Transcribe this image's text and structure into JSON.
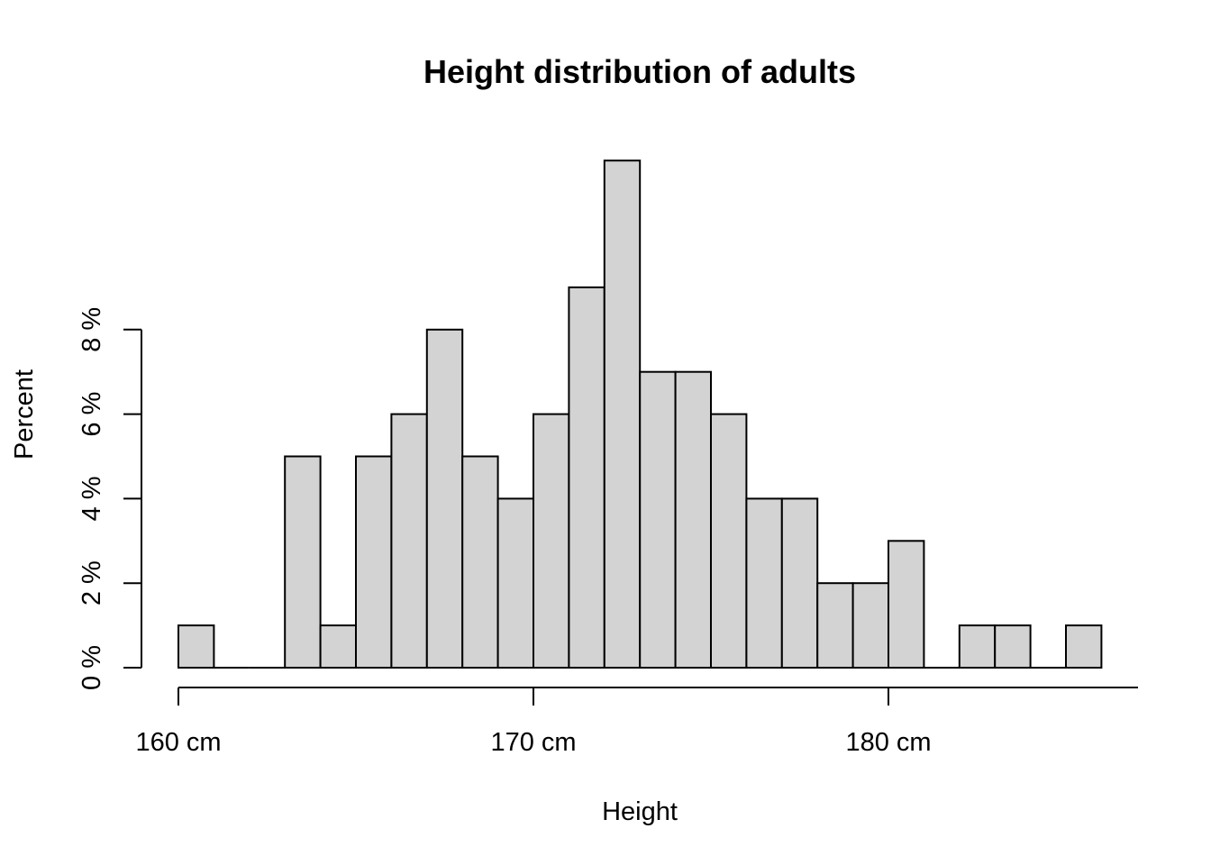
{
  "chart_data": {
    "type": "bar",
    "title": "Height distribution of adults",
    "xlabel": "Height",
    "ylabel": "Percent",
    "bin_width": 1,
    "bins": [
      {
        "start": 160,
        "end": 161,
        "value": 1
      },
      {
        "start": 161,
        "end": 162,
        "value": 0
      },
      {
        "start": 162,
        "end": 163,
        "value": 0
      },
      {
        "start": 163,
        "end": 164,
        "value": 5
      },
      {
        "start": 164,
        "end": 165,
        "value": 1
      },
      {
        "start": 165,
        "end": 166,
        "value": 5
      },
      {
        "start": 166,
        "end": 167,
        "value": 6
      },
      {
        "start": 167,
        "end": 168,
        "value": 8
      },
      {
        "start": 168,
        "end": 169,
        "value": 5
      },
      {
        "start": 169,
        "end": 170,
        "value": 4
      },
      {
        "start": 170,
        "end": 171,
        "value": 6
      },
      {
        "start": 171,
        "end": 172,
        "value": 9
      },
      {
        "start": 172,
        "end": 173,
        "value": 12
      },
      {
        "start": 173,
        "end": 174,
        "value": 7
      },
      {
        "start": 174,
        "end": 175,
        "value": 7
      },
      {
        "start": 175,
        "end": 176,
        "value": 6
      },
      {
        "start": 176,
        "end": 177,
        "value": 4
      },
      {
        "start": 177,
        "end": 178,
        "value": 4
      },
      {
        "start": 178,
        "end": 179,
        "value": 2
      },
      {
        "start": 179,
        "end": 180,
        "value": 2
      },
      {
        "start": 180,
        "end": 181,
        "value": 3
      },
      {
        "start": 181,
        "end": 182,
        "value": 0
      },
      {
        "start": 182,
        "end": 183,
        "value": 1
      },
      {
        "start": 183,
        "end": 184,
        "value": 1
      },
      {
        "start": 184,
        "end": 185,
        "value": 0
      },
      {
        "start": 185,
        "end": 186,
        "value": 1
      }
    ],
    "x_ticks": [
      {
        "value": 160,
        "label": "160 cm"
      },
      {
        "value": 170,
        "label": "170 cm"
      },
      {
        "value": 180,
        "label": "180 cm"
      }
    ],
    "y_ticks": [
      {
        "value": 0,
        "label": "0 %"
      },
      {
        "value": 2,
        "label": "2 %"
      },
      {
        "value": 4,
        "label": "4 %"
      },
      {
        "value": 6,
        "label": "6 %"
      },
      {
        "value": 8,
        "label": "8 %"
      }
    ],
    "xlim": [
      159,
      187
    ],
    "ylim": [
      0,
      12
    ],
    "grid": false,
    "bar_color": "#d3d3d3",
    "edge_color": "#000000"
  }
}
